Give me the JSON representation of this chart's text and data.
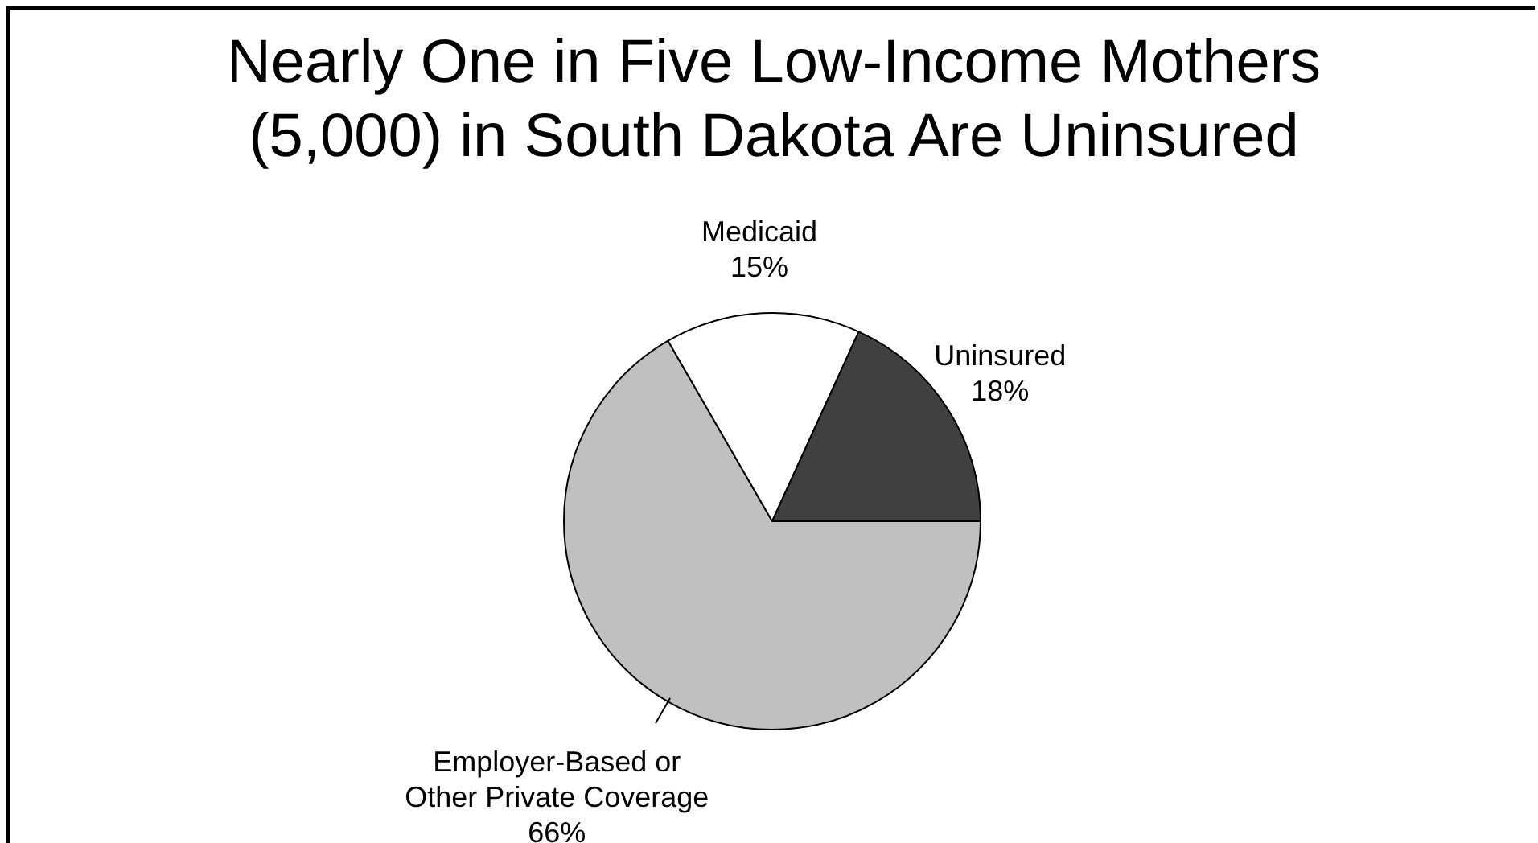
{
  "chart_data": {
    "type": "pie",
    "title": "Nearly One in Five Low-Income Mothers (5,000) in South Dakota Are Uninsured",
    "categories": [
      "Employer-Based or Other Private Coverage",
      "Medicaid",
      "Uninsured"
    ],
    "values": [
      66,
      15,
      18
    ],
    "colors": [
      "#c0c0c0",
      "#ffffff",
      "#404040"
    ],
    "value_labels": [
      "66%",
      "15%",
      "18%"
    ],
    "legend": false
  }
}
